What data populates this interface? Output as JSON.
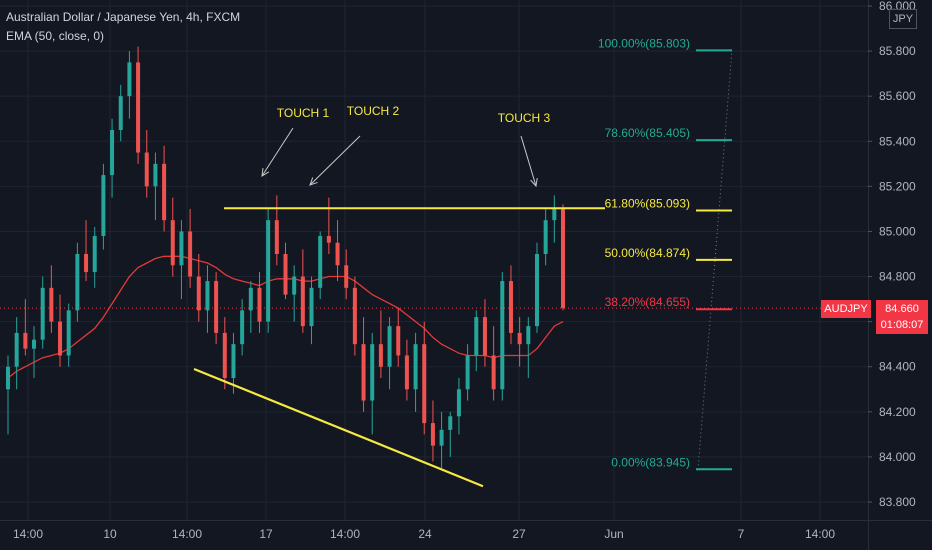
{
  "header": {
    "title": "Australian Dollar / Japanese Yen, 4h, FXCM",
    "indicator": "EMA (50, close, 0)"
  },
  "currency_badge": "JPY",
  "price_tag": {
    "symbol": "AUDJPY",
    "price": "84.660",
    "countdown": "01:08:07"
  },
  "colors": {
    "background": "#131722",
    "up": "#26a69a",
    "down": "#ef5350",
    "ema": "#e53935",
    "yellow": "#f6e940",
    "teal": "#22ab94",
    "red_level": "#f23645",
    "axis": "#b2b5be",
    "grid": "#1f2433"
  },
  "chart_data": {
    "type": "candlestick",
    "title": "Australian Dollar / Japanese Yen, 4h, FXCM",
    "y_axis": {
      "ticks": [
        "83.800",
        "84.000",
        "84.200",
        "84.400",
        "84.600",
        "84.800",
        "85.000",
        "85.200",
        "85.400",
        "85.600",
        "85.800",
        "86.000"
      ],
      "range": [
        83.72,
        86.05
      ],
      "side": "right"
    },
    "x_axis": {
      "ticks": [
        "14:00",
        "10",
        "14:00",
        "17",
        "14:00",
        "24",
        "27",
        "Jun",
        "7",
        "14:00"
      ]
    },
    "fib_levels": [
      {
        "label": "100.00%(85.803)",
        "value": 85.803,
        "color": "#22ab94"
      },
      {
        "label": "78.60%(85.405)",
        "value": 85.405,
        "color": "#22ab94"
      },
      {
        "label": "61.80%(85.093)",
        "value": 85.093,
        "color": "#f6e940"
      },
      {
        "label": "50.00%(84.874)",
        "value": 84.874,
        "color": "#f6e940"
      },
      {
        "label": "38.20%(84.655)",
        "value": 84.655,
        "color": "#f23645"
      },
      {
        "label": "0.00%(83.945)",
        "value": 83.945,
        "color": "#22ab94"
      }
    ],
    "resistance": {
      "value": 85.103
    },
    "support_line": {
      "from": {
        "bar": 0.29,
        "value": 84.39
      },
      "to": {
        "bar": 0.695,
        "value": 83.87
      }
    },
    "annotations": [
      {
        "text": "TOUCH 1"
      },
      {
        "text": "TOUCH 2"
      },
      {
        "text": "TOUCH 3"
      }
    ],
    "current_price": 84.66,
    "candles": [
      [
        84.3,
        84.45,
        84.1,
        84.4
      ],
      [
        84.4,
        84.62,
        84.3,
        84.55
      ],
      [
        84.55,
        84.7,
        84.45,
        84.48
      ],
      [
        84.48,
        84.58,
        84.35,
        84.52
      ],
      [
        84.52,
        84.8,
        84.48,
        84.75
      ],
      [
        84.75,
        84.85,
        84.55,
        84.6
      ],
      [
        84.6,
        84.72,
        84.4,
        84.45
      ],
      [
        84.45,
        84.68,
        84.4,
        84.65
      ],
      [
        84.65,
        84.95,
        84.6,
        84.9
      ],
      [
        84.9,
        85.05,
        84.78,
        84.82
      ],
      [
        84.82,
        85.02,
        84.75,
        84.98
      ],
      [
        84.98,
        85.3,
        84.92,
        85.25
      ],
      [
        85.25,
        85.5,
        85.15,
        85.45
      ],
      [
        85.45,
        85.65,
        85.4,
        85.6
      ],
      [
        85.6,
        85.8,
        85.5,
        85.75
      ],
      [
        85.75,
        85.82,
        85.3,
        85.35
      ],
      [
        85.35,
        85.45,
        85.15,
        85.2
      ],
      [
        85.2,
        85.35,
        85.05,
        85.3
      ],
      [
        85.3,
        85.38,
        85.0,
        85.05
      ],
      [
        85.05,
        85.15,
        84.8,
        84.85
      ],
      [
        84.85,
        85.05,
        84.7,
        85.0
      ],
      [
        85.0,
        85.1,
        84.75,
        84.8
      ],
      [
        84.8,
        84.9,
        84.6,
        84.65
      ],
      [
        84.65,
        84.85,
        84.55,
        84.78
      ],
      [
        84.78,
        84.82,
        84.5,
        84.55
      ],
      [
        84.55,
        84.62,
        84.3,
        84.35
      ],
      [
        84.35,
        84.55,
        84.28,
        84.5
      ],
      [
        84.5,
        84.7,
        84.45,
        84.65
      ],
      [
        84.65,
        84.78,
        84.55,
        84.75
      ],
      [
        84.75,
        84.82,
        84.55,
        84.6
      ],
      [
        84.6,
        85.1,
        84.55,
        85.05
      ],
      [
        85.05,
        85.16,
        84.85,
        84.9
      ],
      [
        84.9,
        84.95,
        84.7,
        84.72
      ],
      [
        84.72,
        84.85,
        84.6,
        84.8
      ],
      [
        84.8,
        84.92,
        84.55,
        84.58
      ],
      [
        84.58,
        84.8,
        84.5,
        84.75
      ],
      [
        84.75,
        85.0,
        84.7,
        84.98
      ],
      [
        84.98,
        85.15,
        84.9,
        84.95
      ],
      [
        84.95,
        85.05,
        84.78,
        84.85
      ],
      [
        84.85,
        84.92,
        84.7,
        84.75
      ],
      [
        84.75,
        84.8,
        84.45,
        84.5
      ],
      [
        84.5,
        84.62,
        84.2,
        84.25
      ],
      [
        84.25,
        84.55,
        84.1,
        84.5
      ],
      [
        84.5,
        84.65,
        84.35,
        84.4
      ],
      [
        84.4,
        84.62,
        84.3,
        84.58
      ],
      [
        84.58,
        84.66,
        84.4,
        84.45
      ],
      [
        84.45,
        84.52,
        84.25,
        84.3
      ],
      [
        84.3,
        84.55,
        84.2,
        84.5
      ],
      [
        84.5,
        84.6,
        84.1,
        84.15
      ],
      [
        84.15,
        84.25,
        83.98,
        84.05
      ],
      [
        84.05,
        84.2,
        83.95,
        84.12
      ],
      [
        84.12,
        84.2,
        84.0,
        84.18
      ],
      [
        84.18,
        84.35,
        84.1,
        84.3
      ],
      [
        84.3,
        84.5,
        84.25,
        84.45
      ],
      [
        84.45,
        84.65,
        84.38,
        84.62
      ],
      [
        84.62,
        84.7,
        84.4,
        84.45
      ],
      [
        84.45,
        84.58,
        84.25,
        84.3
      ],
      [
        84.3,
        84.82,
        84.25,
        84.78
      ],
      [
        84.78,
        84.85,
        84.5,
        84.55
      ],
      [
        84.55,
        84.62,
        84.4,
        84.5
      ],
      [
        84.5,
        84.62,
        84.35,
        84.58
      ],
      [
        84.58,
        84.95,
        84.55,
        84.9
      ],
      [
        84.9,
        85.1,
        84.85,
        85.05
      ],
      [
        85.05,
        85.16,
        84.95,
        85.1
      ],
      [
        85.1,
        85.12,
        84.65,
        84.66
      ]
    ],
    "ema": [
      84.35,
      84.38,
      84.4,
      84.42,
      84.44,
      84.45,
      84.46,
      84.48,
      84.51,
      84.54,
      84.57,
      84.62,
      84.68,
      84.74,
      84.8,
      84.84,
      84.86,
      84.88,
      84.89,
      84.89,
      84.89,
      84.88,
      84.87,
      84.86,
      84.84,
      84.81,
      84.79,
      84.78,
      84.77,
      84.76,
      84.78,
      84.79,
      84.79,
      84.79,
      84.78,
      84.78,
      84.79,
      84.8,
      84.8,
      84.8,
      84.78,
      84.75,
      84.72,
      84.7,
      84.68,
      84.66,
      84.63,
      84.6,
      84.57,
      84.53,
      84.5,
      84.48,
      84.46,
      84.45,
      84.45,
      84.45,
      84.44,
      84.45,
      84.45,
      84.45,
      84.45,
      84.48,
      84.53,
      84.58,
      84.6
    ]
  }
}
